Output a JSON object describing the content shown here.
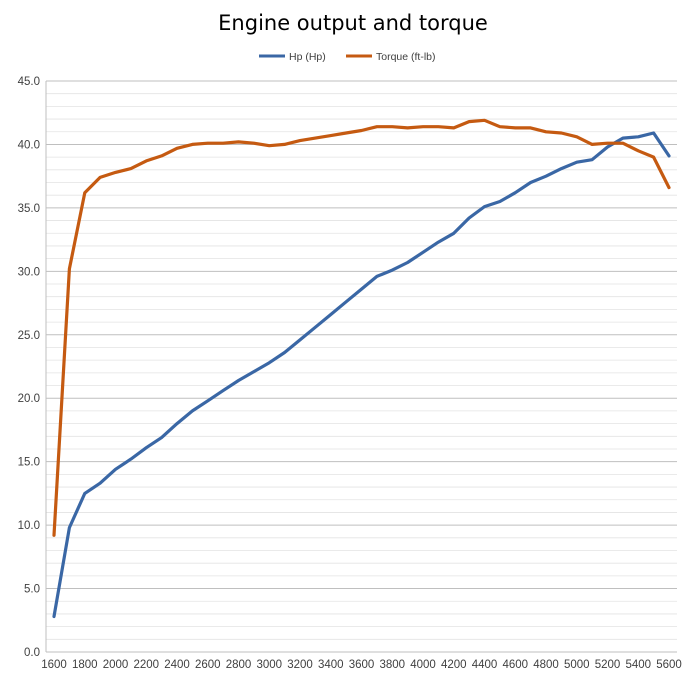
{
  "chart_data": {
    "type": "line",
    "title": "Engine output and torque",
    "xlabel": "",
    "ylabel": "",
    "x": [
      1600,
      1700,
      1800,
      1900,
      2000,
      2100,
      2200,
      2300,
      2400,
      2500,
      2600,
      2700,
      2800,
      2900,
      3000,
      3100,
      3200,
      3300,
      3400,
      3500,
      3600,
      3700,
      3800,
      3900,
      4000,
      4100,
      4200,
      4300,
      4400,
      4500,
      4600,
      4700,
      4800,
      4900,
      5000,
      5100,
      5200,
      5300,
      5400,
      5500,
      5600
    ],
    "xlim": [
      1600,
      5600
    ],
    "x_ticks": [
      "1600",
      "1800",
      "2000",
      "2200",
      "2400",
      "2600",
      "2800",
      "3000",
      "3200",
      "3400",
      "3600",
      "3800",
      "4000",
      "4200",
      "4400",
      "4600",
      "4800",
      "5000",
      "5200",
      "5400",
      "5600"
    ],
    "ylim": [
      0,
      45
    ],
    "y_ticks": [
      "0.0",
      "5.0",
      "10.0",
      "15.0",
      "20.0",
      "25.0",
      "30.0",
      "35.0",
      "40.0",
      "45.0"
    ],
    "grid": true,
    "legend_position": "top-center",
    "series": [
      {
        "name": "Hp (Hp)",
        "color": "#3A67A5",
        "values": [
          2.8,
          9.8,
          12.5,
          13.3,
          14.4,
          15.2,
          16.1,
          16.9,
          18.0,
          19.0,
          19.8,
          20.6,
          21.4,
          22.1,
          22.8,
          23.6,
          24.6,
          25.6,
          26.6,
          27.6,
          28.6,
          29.6,
          30.1,
          30.7,
          31.5,
          32.3,
          33.0,
          34.2,
          35.1,
          35.5,
          36.2,
          37.0,
          37.5,
          38.1,
          38.6,
          38.8,
          39.8,
          40.5,
          40.6,
          40.9,
          39.1
        ]
      },
      {
        "name": "Torque (ft-lb)",
        "color": "#C55A11",
        "values": [
          9.2,
          30.2,
          36.2,
          37.4,
          37.8,
          38.1,
          38.7,
          39.1,
          39.7,
          40.0,
          40.1,
          40.1,
          40.2,
          40.1,
          39.9,
          40.0,
          40.3,
          40.5,
          40.7,
          40.9,
          41.1,
          41.4,
          41.4,
          41.3,
          41.4,
          41.4,
          41.3,
          41.8,
          41.9,
          41.4,
          41.3,
          41.3,
          41.0,
          40.9,
          40.6,
          40.0,
          40.1,
          40.1,
          39.5,
          39.0,
          36.6
        ]
      }
    ]
  }
}
